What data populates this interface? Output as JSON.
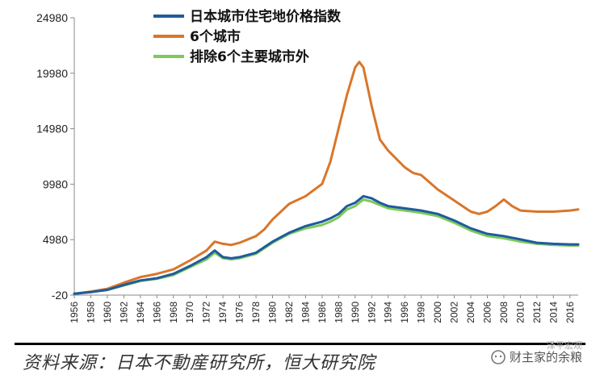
{
  "chart_data": {
    "type": "line",
    "title": "",
    "xlabel": "",
    "ylabel": "",
    "ylim": [
      -20,
      24980
    ],
    "yticks": [
      -20,
      4980,
      9980,
      14980,
      19980,
      24980
    ],
    "xlim": [
      1956,
      2017
    ],
    "xticks": [
      1956,
      1958,
      1960,
      1962,
      1964,
      1966,
      1968,
      1970,
      1972,
      1974,
      1976,
      1978,
      1980,
      1982,
      1984,
      1986,
      1988,
      1990,
      1992,
      1994,
      1996,
      1998,
      2000,
      2002,
      2004,
      2006,
      2008,
      2010,
      2012,
      2014,
      2016
    ],
    "grid": false,
    "legend_position": "top-left",
    "series": [
      {
        "name": "日本城市住宅地价格指数",
        "color": "#1f5b9e",
        "x": [
          1956,
          1958,
          1960,
          1962,
          1964,
          1966,
          1968,
          1970,
          1972,
          1973,
          1974,
          1975,
          1976,
          1978,
          1980,
          1982,
          1984,
          1986,
          1987,
          1988,
          1989,
          1990,
          1991,
          1992,
          1993,
          1994,
          1996,
          1998,
          2000,
          2002,
          2004,
          2006,
          2008,
          2010,
          2012,
          2014,
          2016,
          2017
        ],
        "y": [
          100,
          250,
          450,
          900,
          1300,
          1500,
          1900,
          2600,
          3400,
          4000,
          3400,
          3300,
          3400,
          3800,
          4800,
          5600,
          6200,
          6600,
          6900,
          7300,
          8000,
          8300,
          8900,
          8700,
          8300,
          8000,
          7800,
          7600,
          7300,
          6700,
          6000,
          5500,
          5300,
          5000,
          4700,
          4600,
          4550,
          4550
        ]
      },
      {
        "name": "6个城市",
        "color": "#d9762a",
        "x": [
          1956,
          1958,
          1960,
          1962,
          1964,
          1966,
          1968,
          1970,
          1972,
          1973,
          1974,
          1975,
          1976,
          1978,
          1979,
          1980,
          1982,
          1984,
          1986,
          1987,
          1988,
          1989,
          1990,
          1990.5,
          1991,
          1992,
          1993,
          1994,
          1996,
          1997,
          1998,
          2000,
          2002,
          2004,
          2005,
          2006,
          2007,
          2008,
          2009,
          2010,
          2012,
          2014,
          2016,
          2017
        ],
        "y": [
          100,
          300,
          550,
          1100,
          1600,
          1900,
          2300,
          3100,
          4000,
          4800,
          4600,
          4500,
          4700,
          5300,
          5900,
          6800,
          8200,
          8900,
          10000,
          12000,
          15000,
          18000,
          20500,
          21000,
          20500,
          17000,
          14000,
          13000,
          11500,
          11000,
          10800,
          9500,
          8500,
          7500,
          7300,
          7500,
          8000,
          8600,
          8000,
          7600,
          7500,
          7500,
          7600,
          7700
        ]
      },
      {
        "name": "排除6个主要城市外",
        "color": "#7ec95a",
        "x": [
          1956,
          1958,
          1960,
          1962,
          1964,
          1966,
          1968,
          1970,
          1972,
          1973,
          1974,
          1975,
          1976,
          1978,
          1980,
          1982,
          1984,
          1986,
          1987,
          1988,
          1989,
          1990,
          1991,
          1992,
          1993,
          1994,
          1996,
          1998,
          2000,
          2002,
          2004,
          2006,
          2008,
          2010,
          2012,
          2014,
          2016,
          2017
        ],
        "y": [
          100,
          250,
          450,
          850,
          1250,
          1450,
          1800,
          2500,
          3200,
          3800,
          3300,
          3200,
          3300,
          3700,
          4700,
          5500,
          6000,
          6300,
          6600,
          7000,
          7700,
          8000,
          8600,
          8400,
          8100,
          7800,
          7600,
          7400,
          7100,
          6500,
          5800,
          5300,
          5100,
          4800,
          4600,
          4500,
          4450,
          4450
        ]
      }
    ]
  },
  "footer": {
    "source": "资料来源：日本不動産研究所，恒大研究院",
    "watermark": "财主家的余粮",
    "watermark_sub": "泽平宏观"
  }
}
